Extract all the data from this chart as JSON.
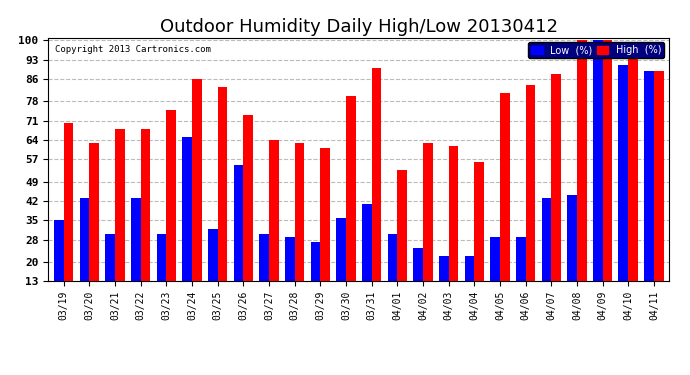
{
  "title": "Outdoor Humidity Daily High/Low 20130412",
  "copyright": "Copyright 2013 Cartronics.com",
  "categories": [
    "03/19",
    "03/20",
    "03/21",
    "03/22",
    "03/23",
    "03/24",
    "03/25",
    "03/26",
    "03/27",
    "03/28",
    "03/29",
    "03/30",
    "03/31",
    "04/01",
    "04/02",
    "04/03",
    "04/04",
    "04/05",
    "04/06",
    "04/07",
    "04/08",
    "04/09",
    "04/10",
    "04/11"
  ],
  "low_values": [
    35,
    43,
    30,
    43,
    30,
    65,
    32,
    55,
    30,
    29,
    27,
    36,
    41,
    30,
    25,
    22,
    22,
    29,
    29,
    43,
    44,
    100,
    91,
    89
  ],
  "high_values": [
    70,
    63,
    68,
    68,
    75,
    86,
    83,
    73,
    64,
    63,
    61,
    80,
    90,
    53,
    63,
    62,
    56,
    81,
    84,
    88,
    100,
    100,
    96,
    89
  ],
  "low_color": "#0000ff",
  "high_color": "#ff0000",
  "background_color": "#ffffff",
  "plot_bg_color": "#ffffff",
  "grid_color": "#bbbbbb",
  "title_fontsize": 13,
  "yticks": [
    13,
    20,
    28,
    35,
    42,
    49,
    57,
    64,
    71,
    78,
    86,
    93,
    100
  ],
  "ymin": 13,
  "ymax": 100,
  "legend_low_label": "Low  (%)",
  "legend_high_label": "High  (%)"
}
